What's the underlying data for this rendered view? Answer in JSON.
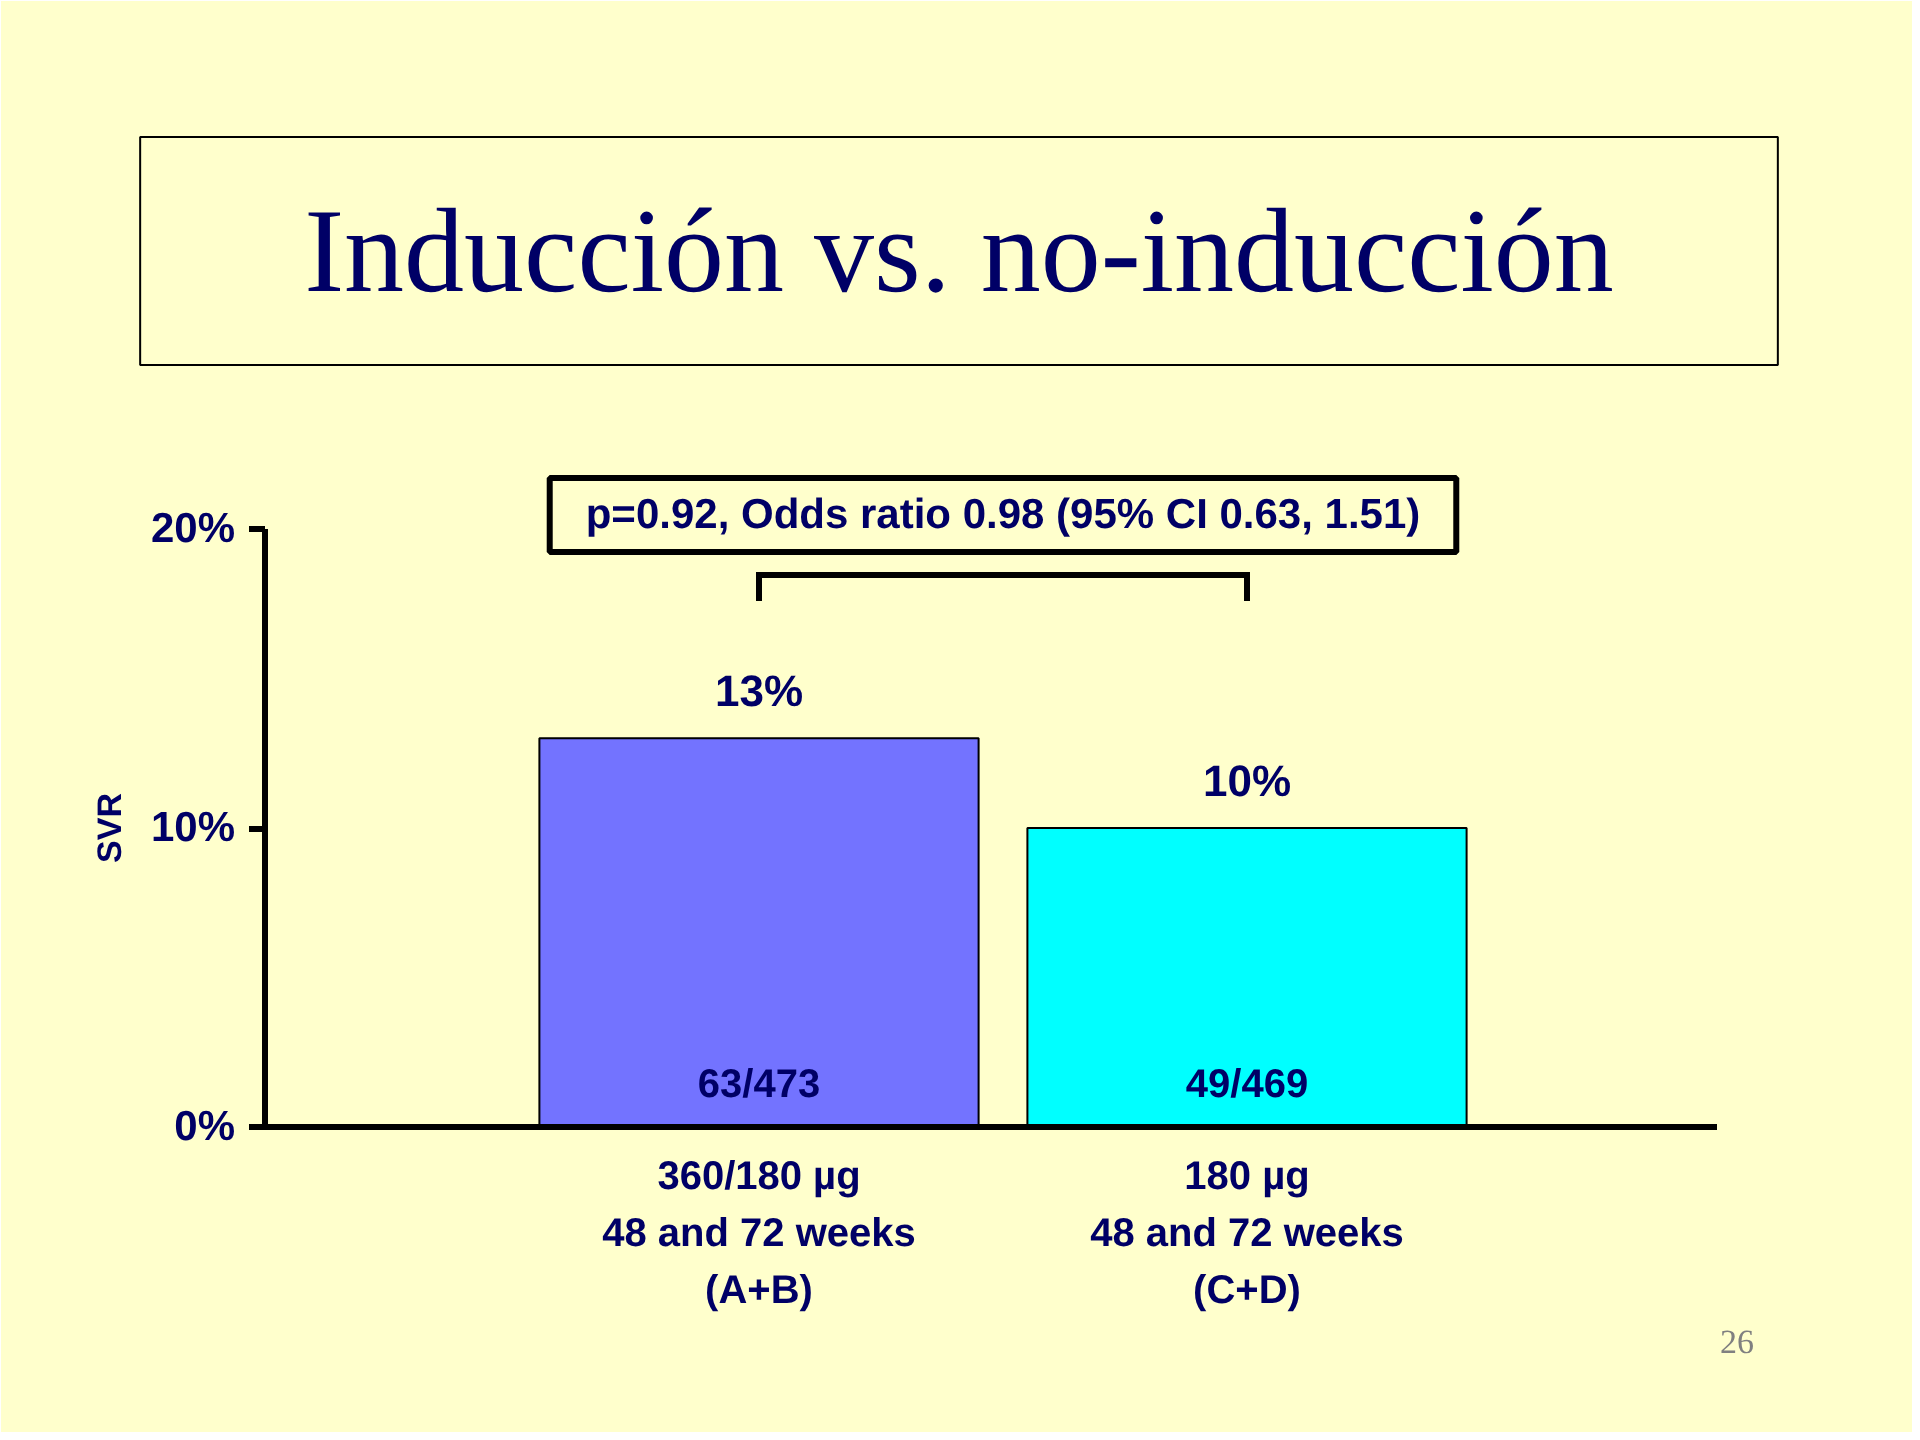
{
  "chart_data": {
    "type": "bar",
    "title": "Inducción vs. no-inducción",
    "ylabel": "SVR",
    "categories": [
      "360/180 µg\n48 and 72 weeks\n(A+B)",
      "180 µg\n48 and 72 weeks\n(C+D)"
    ],
    "values": [
      13,
      10
    ],
    "colors": [
      "#7373ff",
      "#00ffff"
    ],
    "value_labels": [
      "13%",
      "10%"
    ],
    "ylim": [
      0,
      20
    ],
    "yticks": [
      {
        "value": 0,
        "label": "0%"
      },
      {
        "value": 10,
        "label": "10%"
      },
      {
        "value": 20,
        "label": "20%"
      }
    ],
    "annotations": [
      "p=0.92, Odds ratio 0.98 (95% CI 0.63, 1.51)",
      "63/473",
      "49/469",
      "26"
    ]
  }
}
